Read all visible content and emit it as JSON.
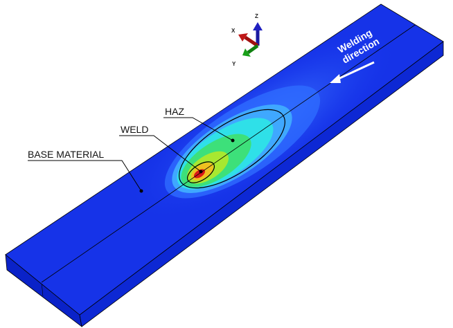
{
  "labels": {
    "haz": "HAZ",
    "weld": "WELD",
    "base_material": "BASE MATERIAL"
  },
  "welding_direction": [
    "Welding",
    "direction"
  ],
  "axes": {
    "x": "X",
    "y": "Y",
    "z": "Z"
  }
}
